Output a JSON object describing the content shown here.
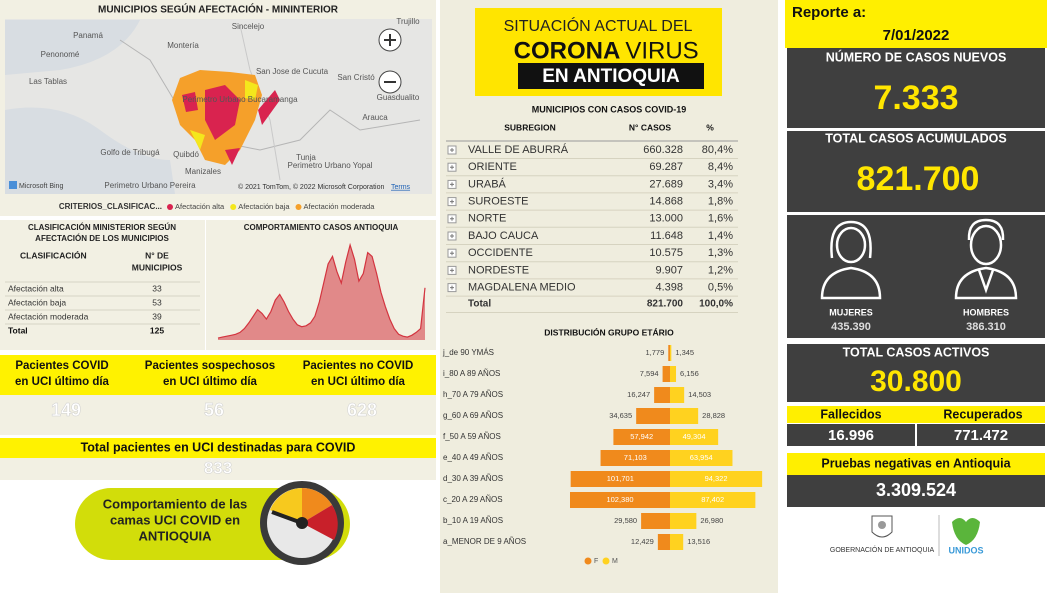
{
  "map_panel": {
    "title": "MUNICIPIOS SEGÚN AFECTACIÓN - MININTERIOR",
    "place_labels": [
      "Sincelejo",
      "Trujillo",
      "Montería",
      "Panamá",
      "Penonomé",
      "Las Tablas",
      "San Jose de Cucuta",
      "San Cristó",
      "Arauca",
      "Guasdualito",
      "Perimetro Urbano Bucaramanga",
      "Golfo de Tribugá",
      "Quibdó",
      "Tunja",
      "Perimetro Urbano Yopal",
      "Manizales",
      "Perimetro Urbano Pereira"
    ],
    "attribution": {
      "provider": "Microsoft Bing",
      "copyright": "© 2021 TomTom, © 2022 Microsoft Corporation",
      "terms": "Terms"
    },
    "legend": {
      "title": "CRITERIOS_CLASIFICAC...",
      "items": [
        {
          "label": "Afectación alta",
          "color": "#d9234f"
        },
        {
          "label": "Afectación baja",
          "color": "#f4e71c"
        },
        {
          "label": "Afectación moderada",
          "color": "#f5a02a"
        }
      ]
    }
  },
  "classification_table": {
    "title": [
      "CLASIFICACIÓN MINISTERIOR SEGÚN",
      "AFECTACIÓN DE LOS MUNICIPIOS"
    ],
    "header_class": "CLASIFICACIÓN",
    "header_count": [
      "N° DE",
      "MUNICIPIOS"
    ],
    "rows": [
      [
        "Afectación alta",
        "33"
      ],
      [
        "Afectación baja",
        "53"
      ],
      [
        "Afectación moderada",
        "39"
      ]
    ],
    "total": [
      "Total",
      "125"
    ]
  },
  "uci_kpis": [
    {
      "label": [
        "Pacientes COVID",
        "en UCI último día"
      ],
      "value": "149"
    },
    {
      "label": [
        "Pacientes sospechosos",
        "en UCI último día"
      ],
      "value": "56"
    },
    {
      "label": [
        "Pacientes no COVID",
        "en UCI último día"
      ],
      "value": "628"
    }
  ],
  "uci_total": {
    "label": "Total pacientes en UCI destinadas para COVID",
    "value": "833"
  },
  "uci_button": {
    "label": [
      "Comportamiento de las",
      "camas UCI COVID en",
      "ANTIOQUIA"
    ]
  },
  "banner": {
    "line1": "SITUACIÓN ACTUAL DEL",
    "corona": "CORONA",
    "virus": "VIRUS",
    "line3": "EN ANTIOQUIA"
  },
  "subregion_table": {
    "title": "MUNICIPIOS CON CASOS COVID-19",
    "headers": [
      "SUBREGION",
      "N° CASOS",
      "%"
    ],
    "rows": [
      [
        "VALLE DE ABURRÁ",
        "660.328",
        "80,4%"
      ],
      [
        "ORIENTE",
        "69.287",
        "8,4%"
      ],
      [
        "URABÁ",
        "27.689",
        "3,4%"
      ],
      [
        "SUROESTE",
        "14.868",
        "1,8%"
      ],
      [
        "NORTE",
        "13.000",
        "1,6%"
      ],
      [
        "BAJO CAUCA",
        "11.648",
        "1,4%"
      ],
      [
        "OCCIDENTE",
        "10.575",
        "1,3%"
      ],
      [
        "NORDESTE",
        "9.907",
        "1,2%"
      ],
      [
        "MAGDALENA MEDIO",
        "4.398",
        "0,5%"
      ]
    ],
    "total": [
      "Total",
      "821.700",
      "100,0%"
    ]
  },
  "report": {
    "label": "Reporte a:",
    "date": "7/01/2022",
    "new_cases": {
      "label": "NÚMERO DE CASOS NUEVOS",
      "value": "7.333"
    },
    "total_cases": {
      "label": "TOTAL CASOS ACUMULADOS",
      "value": "821.700"
    },
    "women": {
      "label": "MUJERES",
      "value": "435.390"
    },
    "men": {
      "label": "HOMBRES",
      "value": "386.310"
    },
    "active": {
      "label": "TOTAL CASOS ACTIVOS",
      "value": "30.800"
    },
    "deaths": {
      "label": "Fallecidos",
      "value": "16.996"
    },
    "recovered": {
      "label": "Recuperados",
      "value": "771.472"
    },
    "negative_tests": {
      "label": "Pruebas negativas en Antioquia",
      "value": "3.309.524"
    },
    "logos": {
      "government": "GOBERNACIÓN DE ANTIOQUIA",
      "unidos": "UNIDOS"
    }
  },
  "chart_data": [
    {
      "type": "area",
      "title": "COMPORTAMIENTO CASOS ANTIOQUIA",
      "color": "#d3343f",
      "values": [
        2,
        3,
        4,
        5,
        6,
        8,
        12,
        18,
        25,
        32,
        28,
        22,
        30,
        42,
        48,
        40,
        30,
        22,
        16,
        14,
        15,
        18,
        25,
        40,
        60,
        80,
        88,
        72,
        60,
        82,
        100,
        85,
        62,
        70,
        92,
        88,
        70,
        50,
        35,
        22,
        12,
        6,
        4,
        3,
        5,
        8,
        12,
        55
      ]
    },
    {
      "type": "butterfly",
      "title": "DISTRIBUCIÓN GRUPO ETÁRIO",
      "categories": [
        "j_de 90 YMÁS",
        "i_80 A 89 AÑOS",
        "h_70 A 79 AÑOS",
        "g_60 A 69 AÑOS",
        "f_50 A 59 AÑOS",
        "e_40 A 49 AÑOS",
        "d_30 A 39 AÑOS",
        "c_20 A 29 AÑOS",
        "b_10 A 19 AÑOS",
        "a_MENOR DE 9 AÑOS"
      ],
      "series": [
        {
          "name": "F",
          "color": "#f08a1c",
          "values": [
            1779,
            7594,
            16247,
            34635,
            57942,
            71103,
            101701,
            102380,
            29580,
            12429
          ],
          "value_labels": [
            "1,779",
            "7,594",
            "16,247",
            "34,635",
            "57,942",
            "71,103",
            "101,701",
            "102,380",
            "29,580",
            "12,429"
          ]
        },
        {
          "name": "M",
          "color": "#ffd21f",
          "values": [
            1345,
            6156,
            14503,
            28828,
            49304,
            63954,
            94322,
            87402,
            26980,
            13516
          ],
          "value_labels": [
            "1,345",
            "6,156",
            "14,503",
            "28,828",
            "49,304",
            "63,954",
            "94,322",
            "87,402",
            "26,980",
            "13,516"
          ]
        }
      ]
    }
  ]
}
